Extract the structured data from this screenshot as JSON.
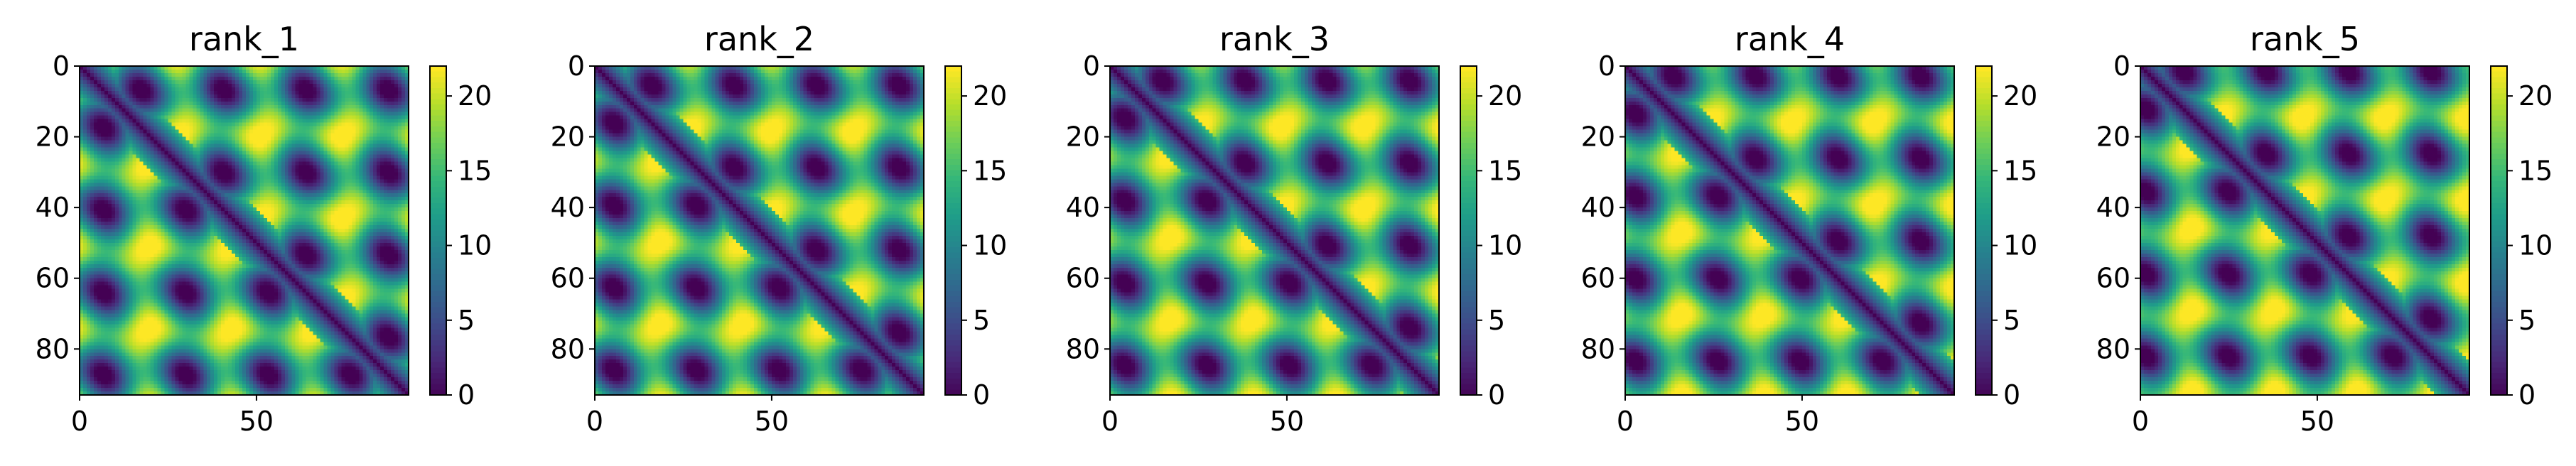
{
  "chart_data": [
    {
      "type": "heatmap",
      "title": "rank_1",
      "n": 93,
      "xticks": [
        0,
        50
      ],
      "yticks": [
        0,
        20,
        40,
        60,
        80
      ],
      "colorbar_ticks": [
        0,
        5,
        10,
        15,
        20
      ],
      "clim": [
        0,
        22
      ],
      "colormap": "viridis"
    },
    {
      "type": "heatmap",
      "title": "rank_2",
      "n": 93,
      "xticks": [
        0,
        50
      ],
      "yticks": [
        0,
        20,
        40,
        60,
        80
      ],
      "colorbar_ticks": [
        0,
        5,
        10,
        15,
        20
      ],
      "clim": [
        0,
        22
      ],
      "colormap": "viridis"
    },
    {
      "type": "heatmap",
      "title": "rank_3",
      "n": 93,
      "xticks": [
        0,
        50
      ],
      "yticks": [
        0,
        20,
        40,
        60,
        80
      ],
      "colorbar_ticks": [
        0,
        5,
        10,
        15,
        20
      ],
      "clim": [
        0,
        22
      ],
      "colormap": "viridis"
    },
    {
      "type": "heatmap",
      "title": "rank_4",
      "n": 93,
      "xticks": [
        0,
        50
      ],
      "yticks": [
        0,
        20,
        40,
        60,
        80
      ],
      "colorbar_ticks": [
        0,
        5,
        10,
        15,
        20
      ],
      "clim": [
        0,
        22
      ],
      "colormap": "viridis"
    },
    {
      "type": "heatmap",
      "title": "rank_5",
      "n": 93,
      "xticks": [
        0,
        50
      ],
      "yticks": [
        0,
        20,
        40,
        60,
        80
      ],
      "colorbar_ticks": [
        0,
        5,
        10,
        15,
        20
      ],
      "clim": [
        0,
        22
      ],
      "colormap": "viridis"
    }
  ]
}
